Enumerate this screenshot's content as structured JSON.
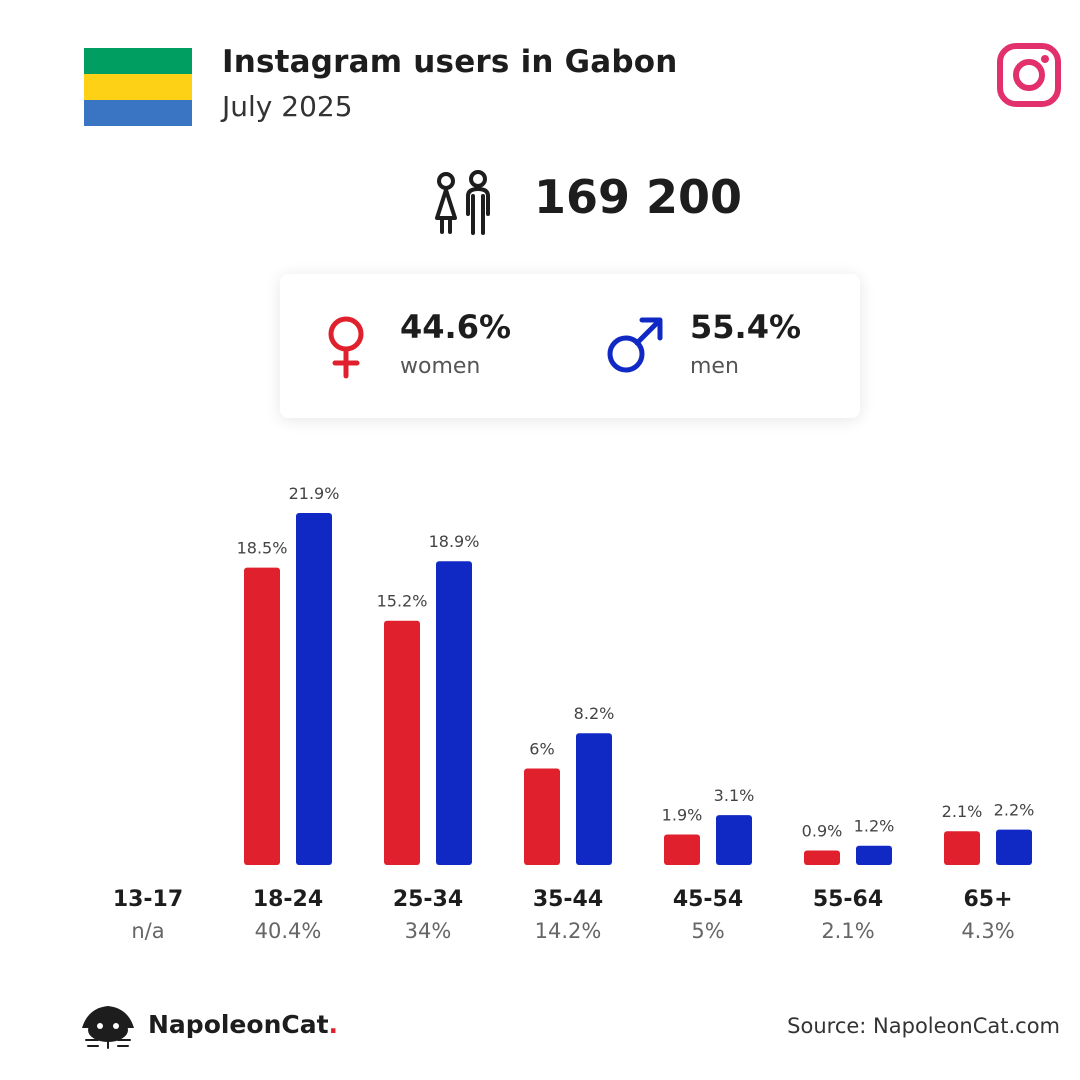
{
  "header": {
    "title": "Instagram users in Gabon",
    "subtitle": "July 2025"
  },
  "flag_colors": [
    "#009e60",
    "#fcd116",
    "#3a75c4"
  ],
  "total": {
    "icon": "people-icon",
    "value": "169 200"
  },
  "gender": {
    "women": {
      "pct": "44.6%",
      "label": "women",
      "icon": "female-symbol-icon",
      "color": "#e0202c"
    },
    "men": {
      "pct": "55.4%",
      "label": "men",
      "icon": "male-symbol-icon",
      "color": "#1029c4"
    }
  },
  "chart_data": {
    "type": "bar",
    "categories": [
      "13-17",
      "18-24",
      "25-34",
      "35-44",
      "45-54",
      "55-64",
      "65+"
    ],
    "group_totals": [
      "n/a",
      "40.4%",
      "34%",
      "14.2%",
      "5%",
      "2.1%",
      "4.3%"
    ],
    "series": [
      {
        "color": "#e0202c",
        "values": [
          null,
          18.5,
          15.2,
          6,
          1.9,
          0.9,
          2.1
        ],
        "labels": [
          "",
          "18.5%",
          "15.2%",
          "6%",
          "1.9%",
          "0.9%",
          "2.1%"
        ]
      },
      {
        "color": "#1029c4",
        "values": [
          null,
          21.9,
          18.9,
          8.2,
          3.1,
          1.2,
          2.2
        ],
        "labels": [
          "",
          "21.9%",
          "18.9%",
          "8.2%",
          "3.1%",
          "1.2%",
          "2.2%"
        ]
      }
    ],
    "ylim": [
      0,
      21.9
    ],
    "grid": false
  },
  "footer": {
    "brand": "NapoleonCat",
    "brand_dot": ".",
    "source": "Source: NapoleonCat.com"
  },
  "instagram_icon": "instagram-icon"
}
